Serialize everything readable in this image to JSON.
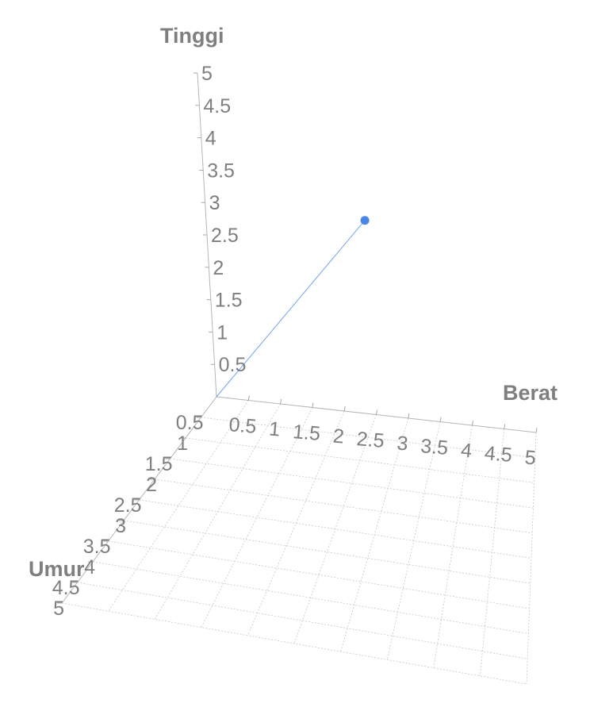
{
  "chart_data": {
    "type": "scatter3d",
    "axes": {
      "x": {
        "label": "Berat",
        "range": [
          0,
          5
        ],
        "ticks": [
          "0.5",
          "1",
          "1.5",
          "2",
          "2.5",
          "3",
          "3.5",
          "4",
          "4.5",
          "5"
        ]
      },
      "y": {
        "label": "Umur",
        "range": [
          0,
          5
        ],
        "ticks": [
          "0.5",
          "1",
          "1.5",
          "2",
          "2.5",
          "3",
          "3.5",
          "4",
          "4.5",
          "5"
        ]
      },
      "z": {
        "label": "Tinggi",
        "range": [
          0,
          5
        ],
        "ticks": [
          "0.5",
          "1",
          "1.5",
          "2",
          "2.5",
          "3",
          "3.5",
          "4",
          "4.5",
          "5"
        ]
      }
    },
    "grid": true,
    "points": [
      {
        "x": 2.5,
        "y": 0,
        "z": 3.0,
        "color": "#4a86e8",
        "stem_to_origin": true
      }
    ]
  }
}
